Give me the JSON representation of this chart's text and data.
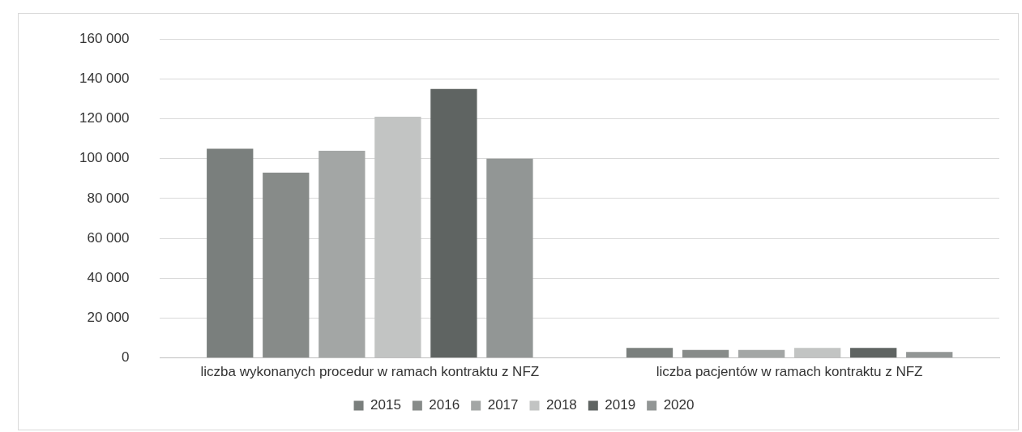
{
  "chart_data": {
    "type": "bar",
    "categories": [
      "liczba wykonanych procedur w ramach kontraktu z NFZ",
      "liczba pacjentów w ramach kontraktu z NFZ"
    ],
    "series": [
      {
        "name": "2015",
        "color": "#7a7f7d",
        "values": [
          105000,
          5000
        ]
      },
      {
        "name": "2016",
        "color": "#878b89",
        "values": [
          93000,
          4000
        ]
      },
      {
        "name": "2017",
        "color": "#a3a6a5",
        "values": [
          104000,
          4000
        ]
      },
      {
        "name": "2018",
        "color": "#c2c4c3",
        "values": [
          121000,
          5000
        ]
      },
      {
        "name": "2019",
        "color": "#5f6462",
        "values": [
          135000,
          5000
        ]
      },
      {
        "name": "2020",
        "color": "#929695",
        "values": [
          100000,
          3000
        ]
      }
    ],
    "ylim": [
      0,
      160000
    ],
    "yticks": [
      {
        "value": 0,
        "label": "0"
      },
      {
        "value": 20000,
        "label": "20 000"
      },
      {
        "value": 40000,
        "label": "40 000"
      },
      {
        "value": 60000,
        "label": "60 000"
      },
      {
        "value": 80000,
        "label": "80 000"
      },
      {
        "value": 100000,
        "label": "100 000"
      },
      {
        "value": 120000,
        "label": "120 000"
      },
      {
        "value": 140000,
        "label": "140 000"
      },
      {
        "value": 160000,
        "label": "160 000"
      }
    ],
    "grid": "y",
    "legend": "bottom"
  }
}
